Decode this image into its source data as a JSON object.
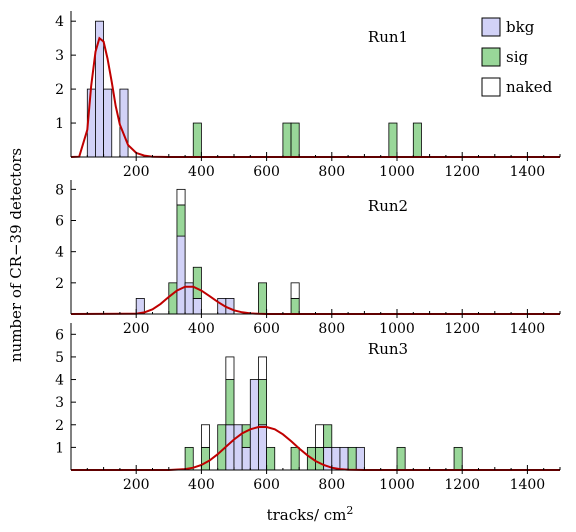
{
  "colors": {
    "bkg": "#d2d2f7",
    "sig": "#99d799",
    "naked": "#ffffff",
    "curve": "#c00000"
  },
  "chart_data": {
    "type": "bar",
    "stacked": true,
    "bin_width": 25,
    "xlabel": "tracks/ cm²",
    "ylabel": "number of CR−39 detectors",
    "xlim": [
      0,
      1500
    ],
    "x_ticks": [
      200,
      400,
      600,
      800,
      1000,
      1200,
      1400
    ],
    "legend": {
      "placement": "top-right",
      "entries": [
        {
          "name": "bkg",
          "color_key": "bkg"
        },
        {
          "name": "sig",
          "color_key": "sig"
        },
        {
          "name": "naked",
          "color_key": "naked"
        }
      ]
    },
    "panels": [
      {
        "label": "Run1",
        "ylim": [
          0,
          4.3
        ],
        "y_ticks": [
          1,
          2,
          3,
          4
        ],
        "bins": [
          {
            "x": 62.5,
            "bkg": 2,
            "sig": 0,
            "naked": 0
          },
          {
            "x": 87.5,
            "bkg": 4,
            "sig": 0,
            "naked": 0
          },
          {
            "x": 112.5,
            "bkg": 2,
            "sig": 0,
            "naked": 0
          },
          {
            "x": 162.5,
            "bkg": 2,
            "sig": 0,
            "naked": 0
          },
          {
            "x": 387.5,
            "bkg": 0,
            "sig": 1,
            "naked": 0
          },
          {
            "x": 662.5,
            "bkg": 0,
            "sig": 1,
            "naked": 0
          },
          {
            "x": 687.5,
            "bkg": 0,
            "sig": 1,
            "naked": 0
          },
          {
            "x": 987.5,
            "bkg": 0,
            "sig": 1,
            "naked": 0
          },
          {
            "x": 1062.5,
            "bkg": 0,
            "sig": 1,
            "naked": 0
          }
        ],
        "fit_curve": [
          [
            0,
            0
          ],
          [
            25,
            0.01
          ],
          [
            50,
            0.8
          ],
          [
            62,
            2.1
          ],
          [
            75,
            3.1
          ],
          [
            87,
            3.5
          ],
          [
            100,
            3.4
          ],
          [
            112,
            2.9
          ],
          [
            125,
            2.2
          ],
          [
            137,
            1.5
          ],
          [
            150,
            0.95
          ],
          [
            175,
            0.35
          ],
          [
            200,
            0.12
          ],
          [
            225,
            0.04
          ],
          [
            250,
            0.01
          ],
          [
            300,
            0
          ],
          [
            1500,
            0
          ]
        ]
      },
      {
        "label": "Run2",
        "ylim": [
          0,
          8.6
        ],
        "y_ticks": [
          2,
          4,
          6,
          8
        ],
        "bins": [
          {
            "x": 212.5,
            "bkg": 1,
            "sig": 0,
            "naked": 0
          },
          {
            "x": 312.5,
            "bkg": 0,
            "sig": 2,
            "naked": 0
          },
          {
            "x": 337.5,
            "bkg": 5,
            "sig": 2,
            "naked": 1
          },
          {
            "x": 362.5,
            "bkg": 2,
            "sig": 0,
            "naked": 0
          },
          {
            "x": 387.5,
            "bkg": 1,
            "sig": 2,
            "naked": 0
          },
          {
            "x": 462.5,
            "bkg": 1,
            "sig": 0,
            "naked": 0
          },
          {
            "x": 487.5,
            "bkg": 1,
            "sig": 0,
            "naked": 0
          },
          {
            "x": 587.5,
            "bkg": 0,
            "sig": 2,
            "naked": 0
          },
          {
            "x": 587.5,
            "bkg": 0,
            "sig": 0,
            "naked": 0
          },
          {
            "x": 687.5,
            "bkg": 0,
            "sig": 1,
            "naked": 1
          }
        ],
        "fit_curve": [
          [
            0,
            0
          ],
          [
            200,
            0.02
          ],
          [
            225,
            0.1
          ],
          [
            250,
            0.3
          ],
          [
            275,
            0.65
          ],
          [
            300,
            1.1
          ],
          [
            325,
            1.5
          ],
          [
            350,
            1.75
          ],
          [
            375,
            1.75
          ],
          [
            400,
            1.5
          ],
          [
            425,
            1.15
          ],
          [
            450,
            0.78
          ],
          [
            475,
            0.46
          ],
          [
            500,
            0.24
          ],
          [
            525,
            0.11
          ],
          [
            550,
            0.04
          ],
          [
            575,
            0.01
          ],
          [
            600,
            0
          ],
          [
            1500,
            0
          ]
        ]
      },
      {
        "label": "Run3",
        "ylim": [
          0,
          6.5
        ],
        "y_ticks": [
          1,
          2,
          3,
          4,
          5,
          6
        ],
        "bins": [
          {
            "x": 362.5,
            "bkg": 0,
            "sig": 1,
            "naked": 0
          },
          {
            "x": 412.5,
            "bkg": 0,
            "sig": 1,
            "naked": 1
          },
          {
            "x": 462.5,
            "bkg": 0,
            "sig": 2,
            "naked": 0
          },
          {
            "x": 487.5,
            "bkg": 2,
            "sig": 2,
            "naked": 1
          },
          {
            "x": 512.5,
            "bkg": 2,
            "sig": 0,
            "naked": 0
          },
          {
            "x": 537.5,
            "bkg": 1,
            "sig": 1,
            "naked": 0
          },
          {
            "x": 562.5,
            "bkg": 4,
            "sig": 0,
            "naked": 0
          },
          {
            "x": 587.5,
            "bkg": 2,
            "sig": 2,
            "naked": 1
          },
          {
            "x": 612.5,
            "bkg": 0,
            "sig": 1,
            "naked": 0
          },
          {
            "x": 687.5,
            "bkg": 0,
            "sig": 1,
            "naked": 0
          },
          {
            "x": 737.5,
            "bkg": 0,
            "sig": 1,
            "naked": 0
          },
          {
            "x": 762.5,
            "bkg": 0,
            "sig": 1,
            "naked": 1
          },
          {
            "x": 787.5,
            "bkg": 1,
            "sig": 1,
            "naked": 0
          },
          {
            "x": 812.5,
            "bkg": 1,
            "sig": 0,
            "naked": 0
          },
          {
            "x": 837.5,
            "bkg": 1,
            "sig": 0,
            "naked": 0
          },
          {
            "x": 862.5,
            "bkg": 0,
            "sig": 1,
            "naked": 0
          },
          {
            "x": 887.5,
            "bkg": 1,
            "sig": 0,
            "naked": 0
          },
          {
            "x": 1012.5,
            "bkg": 0,
            "sig": 1,
            "naked": 0
          },
          {
            "x": 1187.5,
            "bkg": 0,
            "sig": 1,
            "naked": 0
          }
        ],
        "fit_curve": [
          [
            0,
            0
          ],
          [
            300,
            0
          ],
          [
            350,
            0.04
          ],
          [
            375,
            0.1
          ],
          [
            400,
            0.22
          ],
          [
            425,
            0.42
          ],
          [
            450,
            0.7
          ],
          [
            475,
            1.02
          ],
          [
            500,
            1.35
          ],
          [
            525,
            1.62
          ],
          [
            550,
            1.8
          ],
          [
            575,
            1.9
          ],
          [
            600,
            1.9
          ],
          [
            625,
            1.8
          ],
          [
            650,
            1.58
          ],
          [
            675,
            1.28
          ],
          [
            700,
            0.95
          ],
          [
            725,
            0.65
          ],
          [
            750,
            0.4
          ],
          [
            775,
            0.22
          ],
          [
            800,
            0.1
          ],
          [
            825,
            0.04
          ],
          [
            850,
            0.01
          ],
          [
            900,
            0
          ],
          [
            1500,
            0
          ]
        ]
      }
    ]
  }
}
